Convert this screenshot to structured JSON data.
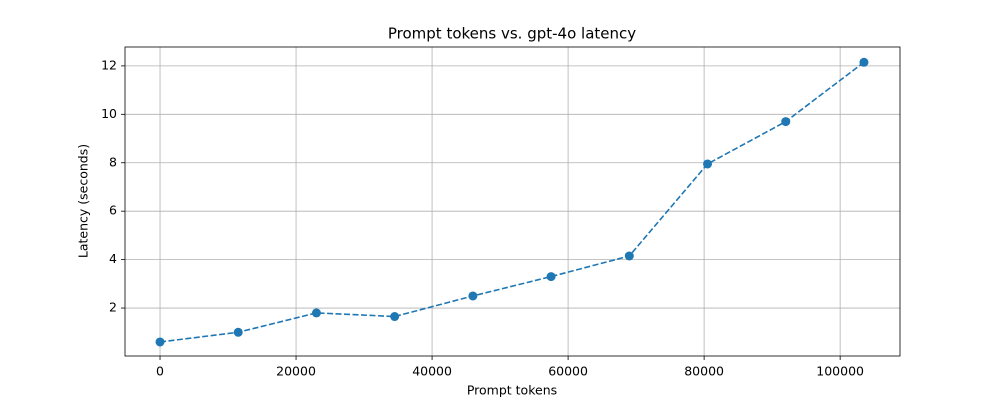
{
  "chart_data": {
    "type": "line",
    "title": "Prompt tokens vs. gpt-4o latency",
    "x_label": "Prompt tokens",
    "y_label": "Latency (seconds)",
    "x": [
      0,
      11500,
      23000,
      34500,
      46000,
      57500,
      69000,
      80500,
      92000,
      103500
    ],
    "series": [
      {
        "name": "latency",
        "color": "#1f77b4",
        "values": [
          0.6,
          1.0,
          1.8,
          1.65,
          2.5,
          3.3,
          4.15,
          7.95,
          9.7,
          12.15
        ]
      }
    ],
    "xlim": [
      -5150,
      108800
    ],
    "ylim": [
      0.02,
      12.78
    ],
    "xticks": [
      0,
      20000,
      40000,
      60000,
      80000,
      100000
    ],
    "yticks": [
      2,
      4,
      6,
      8,
      10,
      12
    ],
    "grid": true,
    "line_style": "dashed",
    "marker": "circle"
  }
}
